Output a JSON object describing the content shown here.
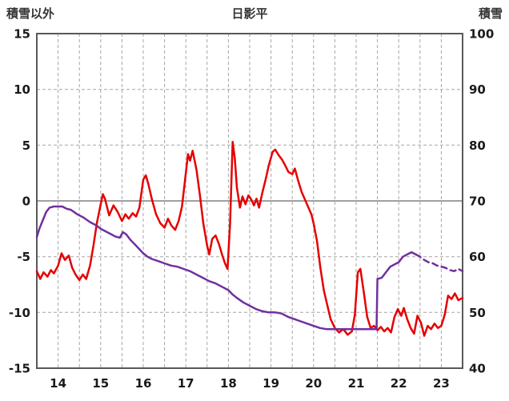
{
  "header": {
    "left_axis_title": "積雪以外",
    "title": "日影平",
    "right_axis_title": "積雪"
  },
  "chart_data": {
    "type": "line",
    "title": "日影平",
    "grid": true,
    "left_axis": {
      "label": "積雪以外",
      "min": -15,
      "max": 15,
      "ticks": [
        15,
        10,
        5,
        0,
        -5,
        -10,
        -15
      ]
    },
    "right_axis": {
      "label": "積雪",
      "min": 40,
      "max": 100,
      "ticks": [
        100,
        90,
        80,
        70,
        60,
        50,
        40
      ]
    },
    "x_axis": {
      "min": 13.5,
      "max": 23.5,
      "gridline_step": 0.5,
      "tick_labels": [
        "14",
        "15",
        "16",
        "17",
        "18",
        "19",
        "20",
        "21",
        "22",
        "23"
      ]
    },
    "series": [
      {
        "id": "red-series",
        "label": "積雪以外",
        "axis": "left",
        "color": "#e60000",
        "points": [
          [
            13.5,
            -6.3
          ],
          [
            13.58,
            -7
          ],
          [
            13.66,
            -6.4
          ],
          [
            13.75,
            -6.8
          ],
          [
            13.83,
            -6.2
          ],
          [
            13.9,
            -6.5
          ],
          [
            14,
            -5.8
          ],
          [
            14.08,
            -4.7
          ],
          [
            14.16,
            -5.3
          ],
          [
            14.25,
            -4.9
          ],
          [
            14.33,
            -6
          ],
          [
            14.41,
            -6.6
          ],
          [
            14.5,
            -7.1
          ],
          [
            14.58,
            -6.6
          ],
          [
            14.66,
            -7
          ],
          [
            14.75,
            -5.8
          ],
          [
            14.83,
            -4
          ],
          [
            14.91,
            -2
          ],
          [
            15,
            -0.3
          ],
          [
            15.05,
            0.6
          ],
          [
            15.1,
            0.2
          ],
          [
            15.2,
            -1.3
          ],
          [
            15.3,
            -0.4
          ],
          [
            15.4,
            -1
          ],
          [
            15.5,
            -1.8
          ],
          [
            15.58,
            -1.2
          ],
          [
            15.66,
            -1.6
          ],
          [
            15.75,
            -1.1
          ],
          [
            15.83,
            -1.4
          ],
          [
            15.91,
            -0.6
          ],
          [
            16,
            1.9
          ],
          [
            16.06,
            2.3
          ],
          [
            16.12,
            1.5
          ],
          [
            16.2,
            0.2
          ],
          [
            16.3,
            -1.2
          ],
          [
            16.4,
            -2
          ],
          [
            16.5,
            -2.4
          ],
          [
            16.58,
            -1.6
          ],
          [
            16.66,
            -2.2
          ],
          [
            16.75,
            -2.6
          ],
          [
            16.83,
            -1.8
          ],
          [
            16.91,
            -0.5
          ],
          [
            17,
            2.5
          ],
          [
            17.05,
            4.2
          ],
          [
            17.1,
            3.6
          ],
          [
            17.16,
            4.5
          ],
          [
            17.25,
            2.8
          ],
          [
            17.33,
            0.5
          ],
          [
            17.41,
            -2
          ],
          [
            17.5,
            -4
          ],
          [
            17.55,
            -4.8
          ],
          [
            17.62,
            -3.4
          ],
          [
            17.7,
            -3.1
          ],
          [
            17.78,
            -3.9
          ],
          [
            17.85,
            -4.8
          ],
          [
            17.92,
            -5.6
          ],
          [
            17.98,
            -6.1
          ],
          [
            18.04,
            -2
          ],
          [
            18.1,
            5.3
          ],
          [
            18.15,
            3.8
          ],
          [
            18.2,
            1.2
          ],
          [
            18.27,
            -0.6
          ],
          [
            18.33,
            0.4
          ],
          [
            18.4,
            -0.3
          ],
          [
            18.47,
            0.5
          ],
          [
            18.54,
            0.1
          ],
          [
            18.6,
            -0.4
          ],
          [
            18.66,
            0.2
          ],
          [
            18.72,
            -0.6
          ],
          [
            18.8,
            0.8
          ],
          [
            18.88,
            2
          ],
          [
            18.95,
            3.2
          ],
          [
            19.04,
            4.4
          ],
          [
            19.1,
            4.6
          ],
          [
            19.18,
            4.1
          ],
          [
            19.26,
            3.7
          ],
          [
            19.33,
            3.2
          ],
          [
            19.41,
            2.6
          ],
          [
            19.5,
            2.4
          ],
          [
            19.56,
            2.9
          ],
          [
            19.64,
            1.8
          ],
          [
            19.72,
            0.8
          ],
          [
            19.8,
            0.1
          ],
          [
            19.88,
            -0.6
          ],
          [
            19.95,
            -1.2
          ],
          [
            20,
            -2
          ],
          [
            20.08,
            -3.6
          ],
          [
            20.16,
            -6
          ],
          [
            20.24,
            -8
          ],
          [
            20.32,
            -9.3
          ],
          [
            20.4,
            -10.6
          ],
          [
            20.5,
            -11.4
          ],
          [
            20.6,
            -11.8
          ],
          [
            20.7,
            -11.5
          ],
          [
            20.8,
            -12
          ],
          [
            20.9,
            -11.7
          ],
          [
            20.97,
            -10.2
          ],
          [
            21.04,
            -6.4
          ],
          [
            21.1,
            -6.1
          ],
          [
            21.18,
            -8.2
          ],
          [
            21.26,
            -10.4
          ],
          [
            21.34,
            -11.4
          ],
          [
            21.42,
            -11.2
          ],
          [
            21.5,
            -11.6
          ],
          [
            21.58,
            -11.3
          ],
          [
            21.66,
            -11.7
          ],
          [
            21.74,
            -11.4
          ],
          [
            21.82,
            -11.8
          ],
          [
            21.9,
            -10.4
          ],
          [
            21.98,
            -9.7
          ],
          [
            22.06,
            -10.3
          ],
          [
            22.12,
            -9.6
          ],
          [
            22.2,
            -10.6
          ],
          [
            22.28,
            -11.4
          ],
          [
            22.36,
            -11.9
          ],
          [
            22.44,
            -10.3
          ],
          [
            22.52,
            -10.9
          ],
          [
            22.6,
            -12.1
          ],
          [
            22.68,
            -11.2
          ],
          [
            22.76,
            -11.5
          ],
          [
            22.84,
            -11
          ],
          [
            22.92,
            -11.4
          ],
          [
            23,
            -11.2
          ],
          [
            23.08,
            -10.2
          ],
          [
            23.16,
            -8.5
          ],
          [
            23.24,
            -8.8
          ],
          [
            23.32,
            -8.3
          ],
          [
            23.4,
            -8.9
          ],
          [
            23.5,
            -8.7
          ]
        ]
      },
      {
        "id": "purple-series",
        "label": "積雪",
        "axis": "right",
        "color": "#7030a0",
        "dash_from_x": 22.4,
        "points": [
          [
            13.5,
            63.5
          ],
          [
            13.56,
            65
          ],
          [
            13.64,
            66.5
          ],
          [
            13.72,
            68
          ],
          [
            13.8,
            68.8
          ],
          [
            13.9,
            69
          ],
          [
            14,
            69
          ],
          [
            14.1,
            69
          ],
          [
            14.2,
            68.6
          ],
          [
            14.3,
            68.4
          ],
          [
            14.45,
            67.6
          ],
          [
            14.6,
            67
          ],
          [
            14.75,
            66.2
          ],
          [
            14.9,
            65.6
          ],
          [
            15,
            65
          ],
          [
            15.1,
            64.6
          ],
          [
            15.2,
            64.2
          ],
          [
            15.35,
            63.6
          ],
          [
            15.45,
            63.4
          ],
          [
            15.52,
            64.4
          ],
          [
            15.6,
            64
          ],
          [
            15.7,
            63
          ],
          [
            15.8,
            62.2
          ],
          [
            15.9,
            61.4
          ],
          [
            16,
            60.6
          ],
          [
            16.1,
            60
          ],
          [
            16.2,
            59.6
          ],
          [
            16.35,
            59.2
          ],
          [
            16.5,
            58.8
          ],
          [
            16.65,
            58.4
          ],
          [
            16.8,
            58.2
          ],
          [
            16.95,
            57.8
          ],
          [
            17.1,
            57.4
          ],
          [
            17.25,
            56.8
          ],
          [
            17.4,
            56.2
          ],
          [
            17.55,
            55.6
          ],
          [
            17.7,
            55.2
          ],
          [
            17.85,
            54.6
          ],
          [
            18,
            54
          ],
          [
            18.1,
            53.2
          ],
          [
            18.2,
            52.6
          ],
          [
            18.35,
            51.8
          ],
          [
            18.5,
            51.2
          ],
          [
            18.65,
            50.6
          ],
          [
            18.8,
            50.2
          ],
          [
            18.95,
            50
          ],
          [
            19.1,
            50
          ],
          [
            19.25,
            49.8
          ],
          [
            19.4,
            49.2
          ],
          [
            19.55,
            48.8
          ],
          [
            19.7,
            48.4
          ],
          [
            19.85,
            48
          ],
          [
            20,
            47.6
          ],
          [
            20.15,
            47.2
          ],
          [
            20.3,
            47
          ],
          [
            20.6,
            47
          ],
          [
            21,
            47
          ],
          [
            21.48,
            47
          ],
          [
            21.5,
            56
          ],
          [
            21.6,
            56.2
          ],
          [
            21.7,
            57.2
          ],
          [
            21.8,
            58.2
          ],
          [
            21.9,
            58.6
          ],
          [
            22,
            59
          ],
          [
            22.1,
            60
          ],
          [
            22.2,
            60.4
          ],
          [
            22.3,
            60.8
          ],
          [
            22.4,
            60.4
          ],
          [
            22.5,
            60
          ],
          [
            22.6,
            59.4
          ],
          [
            22.7,
            59
          ],
          [
            22.8,
            58.8
          ],
          [
            22.9,
            58.4
          ],
          [
            23,
            58.2
          ],
          [
            23.1,
            58
          ],
          [
            23.2,
            57.6
          ],
          [
            23.3,
            57.4
          ],
          [
            23.4,
            57.8
          ],
          [
            23.5,
            57.4
          ]
        ]
      }
    ],
    "colors": {
      "gridline": "#a6a6a6",
      "zero_line": "#808080",
      "border": "#595959"
    }
  }
}
